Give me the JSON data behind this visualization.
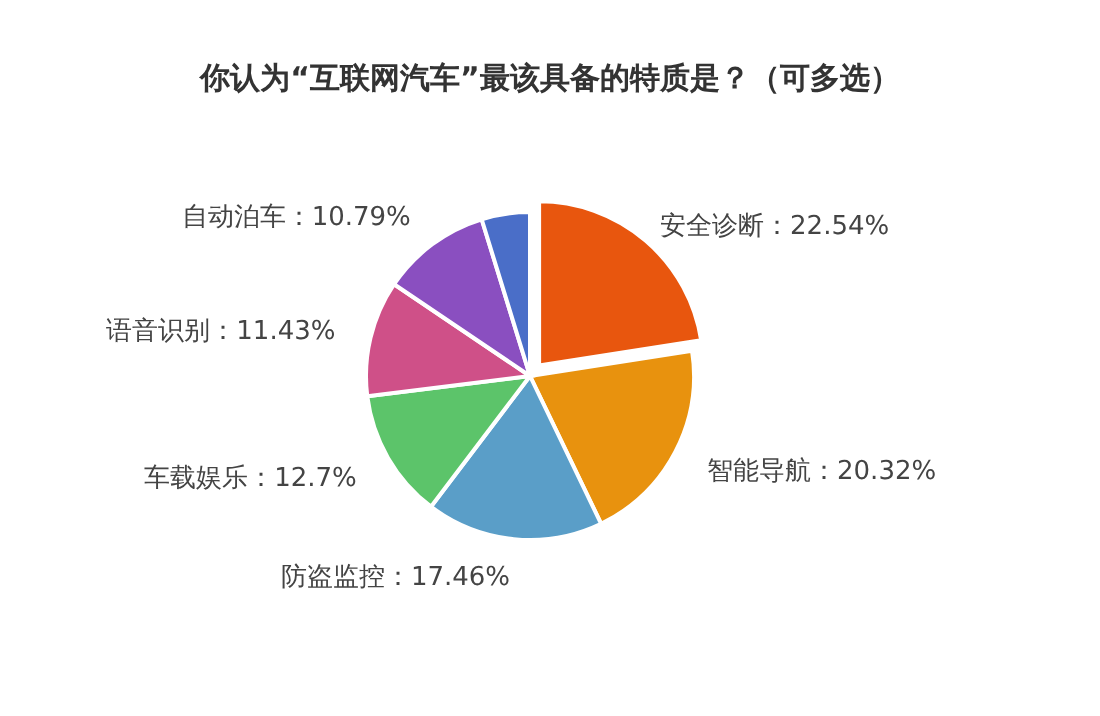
{
  "chart_data": {
    "type": "pie",
    "title": "你认为“互联网汽车”最该具备的特质是？（可多选）",
    "categories": [
      "安全诊断",
      "智能导航",
      "防盗监控",
      "车载娱乐",
      "语音识别",
      "自动泊车",
      null
    ],
    "values": [
      22.54,
      20.32,
      17.46,
      12.7,
      11.43,
      10.79,
      4.76
    ],
    "value_labels": [
      "22.54%",
      "20.32%",
      "17.46%",
      "12.7%",
      "11.43%",
      "10.79%",
      null
    ],
    "colors": [
      "#e8560e",
      "#e8920e",
      "#5a9ec8",
      "#5cc46a",
      "#cf5088",
      "#8a4fc0",
      "#4a6ec8"
    ]
  }
}
